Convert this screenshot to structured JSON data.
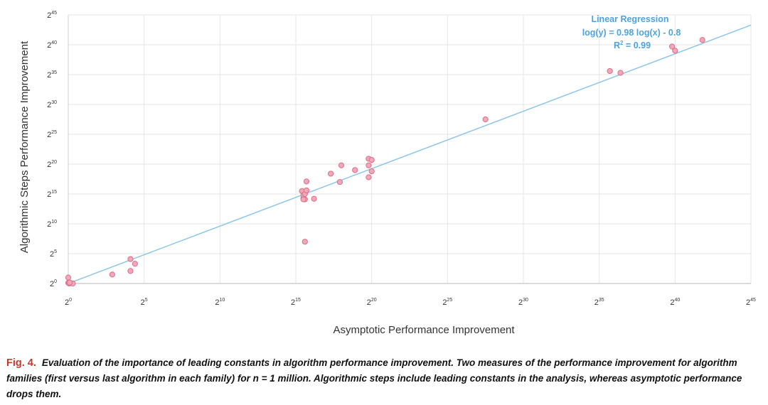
{
  "chart_data": {
    "type": "scatter",
    "xlabel": "Asymptotic Performance Improvement",
    "ylabel": "Algorithmic Steps Performance Improvement",
    "x_scale": "log2",
    "y_scale": "log2",
    "xlim_log2": [
      0,
      45
    ],
    "ylim_log2": [
      0,
      45
    ],
    "x_ticks": [
      {
        "base": "2",
        "exp": "0"
      },
      {
        "base": "2",
        "exp": "5"
      },
      {
        "base": "2",
        "exp": "10"
      },
      {
        "base": "2",
        "exp": "15"
      },
      {
        "base": "2",
        "exp": "20"
      },
      {
        "base": "2",
        "exp": "25"
      },
      {
        "base": "2",
        "exp": "30"
      },
      {
        "base": "2",
        "exp": "35"
      },
      {
        "base": "2",
        "exp": "40"
      },
      {
        "base": "2",
        "exp": "45"
      }
    ],
    "y_ticks": [
      {
        "base": "2",
        "exp": "0"
      },
      {
        "base": "2",
        "exp": "5"
      },
      {
        "base": "2",
        "exp": "10"
      },
      {
        "base": "2",
        "exp": "15"
      },
      {
        "base": "2",
        "exp": "20"
      },
      {
        "base": "2",
        "exp": "25"
      },
      {
        "base": "2",
        "exp": "30"
      },
      {
        "base": "2",
        "exp": "35"
      },
      {
        "base": "2",
        "exp": "40"
      },
      {
        "base": "2",
        "exp": "45"
      }
    ],
    "points_log2": [
      [
        0,
        1.0
      ],
      [
        0,
        0.1
      ],
      [
        0.05,
        0
      ],
      [
        0.15,
        0.05
      ],
      [
        0.3,
        0
      ],
      [
        0.1,
        0.15
      ],
      [
        2.9,
        1.5
      ],
      [
        4.1,
        2.1
      ],
      [
        4.1,
        4.1
      ],
      [
        4.4,
        3.3
      ],
      [
        15.4,
        15.5
      ],
      [
        15.5,
        14.3
      ],
      [
        15.5,
        14.8
      ],
      [
        15.6,
        15.0
      ],
      [
        15.6,
        14.1
      ],
      [
        15.7,
        15.6
      ],
      [
        15.7,
        17.1
      ],
      [
        15.5,
        14.1
      ],
      [
        15.6,
        7.0
      ],
      [
        16.2,
        14.2
      ],
      [
        17.3,
        18.4
      ],
      [
        17.9,
        17.0
      ],
      [
        18.0,
        19.8
      ],
      [
        18.9,
        19.0
      ],
      [
        19.8,
        20.9
      ],
      [
        19.8,
        19.8
      ],
      [
        19.8,
        17.8
      ],
      [
        20.0,
        20.7
      ],
      [
        20.0,
        18.8
      ],
      [
        27.5,
        27.5
      ],
      [
        35.7,
        35.6
      ],
      [
        36.4,
        35.3
      ],
      [
        39.8,
        39.7
      ],
      [
        40.0,
        39.0
      ],
      [
        41.8,
        40.8
      ]
    ],
    "regression": {
      "title": "Linear Regression",
      "equation": "log(y) = 0.98 log(x) - 0.8",
      "r2_label": "R",
      "r2_sup": "2",
      "r2_value": " = 0.99",
      "slope": 0.98,
      "intercept": -0.8
    },
    "colors": {
      "point_fill": "#f2a7b8",
      "point_stroke": "#dc6f8a",
      "regression_line": "#8ec6ea",
      "regression_text": "#4fa3dc",
      "grid": "#e6e6e6",
      "axis": "#cfcfcf"
    }
  },
  "caption": {
    "label": "Fig. 4.",
    "text": "Evaluation of the importance of leading constants in algorithm performance improvement. Two measures of the performance improvement for algorithm families (first versus last algorithm in each family) for n = 1 million. Algorithmic steps include leading constants in the analysis, whereas asymptotic performance drops them."
  }
}
